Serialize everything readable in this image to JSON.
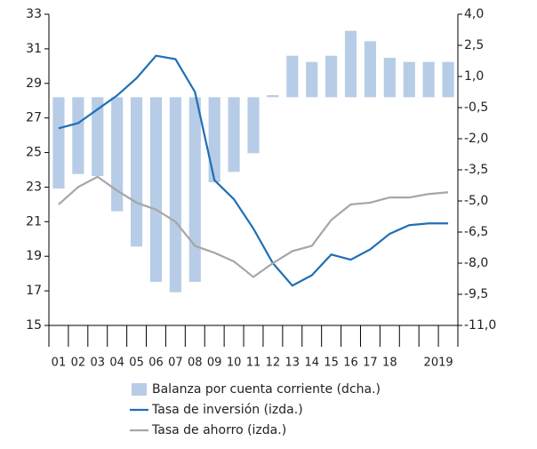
{
  "chart_data": {
    "type": "combo",
    "categories": [
      "01",
      "02",
      "03",
      "04",
      "05",
      "06",
      "07",
      "08",
      "09",
      "10",
      "11",
      "12",
      "13",
      "14",
      "15",
      "16",
      "17",
      "18",
      null,
      "2019",
      null
    ],
    "series": [
      {
        "name": "Balanza por cuenta corriente (dcha.)",
        "type": "bar",
        "axis": "y2",
        "color": "#b7cce6",
        "values": [
          -4.4,
          -3.7,
          -3.8,
          -5.5,
          -7.2,
          -8.9,
          -9.4,
          -8.9,
          -4.1,
          -3.6,
          -2.7,
          0.1,
          2.0,
          1.7,
          2.0,
          3.2,
          2.7,
          1.9,
          1.7,
          1.7,
          1.7
        ]
      },
      {
        "name": "Tasa de inversión (izda.)",
        "type": "line",
        "axis": "y",
        "color": "#1f6fb5",
        "values": [
          26.4,
          26.7,
          27.5,
          28.3,
          29.3,
          30.6,
          30.4,
          28.5,
          23.4,
          22.3,
          20.6,
          18.6,
          17.3,
          17.9,
          19.1,
          18.8,
          19.4,
          20.3,
          20.8,
          20.9,
          20.9
        ]
      },
      {
        "name": "Tasa de ahorro (izda.)",
        "type": "line",
        "axis": "y",
        "color": "#a6a6a6",
        "values": [
          22.0,
          23.0,
          23.6,
          22.8,
          22.1,
          21.7,
          21.0,
          19.6,
          19.2,
          18.7,
          17.8,
          18.6,
          19.3,
          19.6,
          21.1,
          22.0,
          22.1,
          22.4,
          22.4,
          22.6,
          22.7
        ]
      }
    ],
    "ylim": [
      15,
      33
    ],
    "yticks": [
      15,
      17,
      19,
      21,
      23,
      25,
      27,
      29,
      31,
      33
    ],
    "y2lim": [
      -11,
      4
    ],
    "y2ticks": [
      {
        "value": 4.0,
        "label": "4,0"
      },
      {
        "value": 2.5,
        "label": "2,5"
      },
      {
        "value": 1.0,
        "label": "1,0"
      },
      {
        "value": -0.5,
        "label": "-0,5"
      },
      {
        "value": -2.0,
        "label": "-2,0"
      },
      {
        "value": -3.5,
        "label": "-3,5"
      },
      {
        "value": -5.0,
        "label": "-5,0"
      },
      {
        "value": -6.5,
        "label": "-6,5"
      },
      {
        "value": -8.0,
        "label": "-8,0"
      },
      {
        "value": -9.5,
        "label": "-9,5"
      },
      {
        "value": -11.0,
        "label": "-11,0"
      }
    ],
    "legend": "bottom"
  }
}
